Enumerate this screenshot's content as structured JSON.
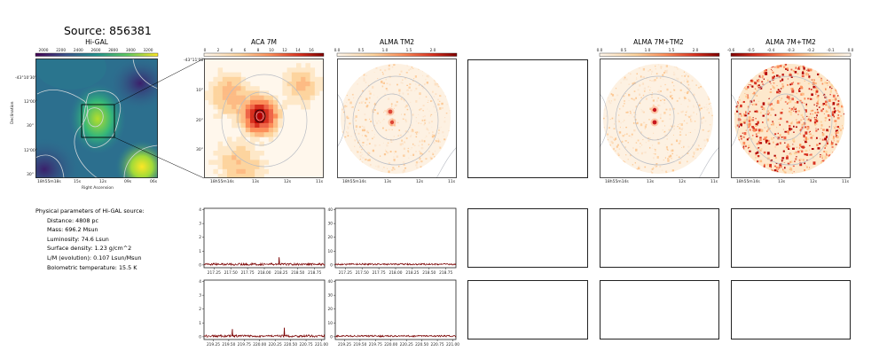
{
  "figure": {
    "title": "Source: 856381"
  },
  "panels": {
    "higal": {
      "title": "Hi-GAL",
      "colorbar_ticks": [
        "2000",
        "2200",
        "2400",
        "2600",
        "2800",
        "3000",
        "3200"
      ],
      "xlabel": "Right Ascension",
      "ylabel": "Declination",
      "x_ticks": [
        "18h55m18s",
        "15s",
        "12s",
        "09s",
        "06s"
      ],
      "y_ticks": [
        "-43°10'30\"",
        "12'00\"",
        "30\"",
        "12'00\"",
        "30\""
      ]
    },
    "aca": {
      "title": "ACA 7M",
      "colorbar_ticks": [
        "0",
        "2",
        "4",
        "6",
        "8",
        "10",
        "12",
        "14",
        "16"
      ],
      "x_ticks": [
        "18h55m14s",
        "13s",
        "12s",
        "11s"
      ],
      "y_ticks": [
        "-43°11'00\"",
        "10\"",
        "20\"",
        "30\""
      ]
    },
    "tm2": {
      "title": "ALMA TM2",
      "colorbar_ticks": [
        "0.0",
        "0.5",
        "1.0",
        "1.5",
        "2.0"
      ],
      "x_ticks": [
        "18h55m14s",
        "13s",
        "12s",
        "11s"
      ]
    },
    "combo": {
      "title": "ALMA 7M+TM2",
      "colorbar_ticks": [
        "0.0",
        "0.5",
        "1.0",
        "1.5",
        "2.0"
      ],
      "x_ticks": [
        "18h55m14s",
        "13s",
        "12s",
        "11s"
      ]
    },
    "resid": {
      "title": "ALMA 7M+TM2",
      "colorbar_ticks": [
        "-0.6",
        "-0.5",
        "-0.4",
        "-0.3",
        "-0.2",
        "-0.1",
        "0.0"
      ],
      "x_ticks": [
        "18h55m14s",
        "13s",
        "12s",
        "11s"
      ]
    }
  },
  "params": {
    "heading": "Physical parameters of Hi-GAL source:",
    "lines": [
      "Distance: 4808 pc",
      "Mass: 696.2 Msun",
      "Luminosity: 74.6 Lsun",
      "Surface density: 1.23 g/cm^2",
      "L/M (evolution): 0.107 Lsun/Msun",
      "Bolometric temperature: 15.5 K"
    ]
  },
  "colors": {
    "spectrum_line": "#7a0000",
    "heat_peak": "#c8161d",
    "viridis_low": "#2c6f8e",
    "viridis_high": "#fde725"
  },
  "chart_data": [
    {
      "type": "line",
      "name": "spectrum ACA 7M window 1",
      "x_ticks": [
        "217.25",
        "217.50",
        "217.75",
        "218.00",
        "218.25",
        "218.50",
        "218.75"
      ],
      "y_ticks": [
        "0",
        "1",
        "2",
        "3",
        "4"
      ],
      "xlim": [
        217.1,
        218.9
      ],
      "ylim": [
        -0.2,
        4.1
      ],
      "baseline": 0.05,
      "noise": 0.08,
      "peaks": [
        {
          "x": 218.22,
          "y": 0.55
        }
      ]
    },
    {
      "type": "line",
      "name": "spectrum ALMA TM2 window 1",
      "x_ticks": [
        "217.25",
        "217.50",
        "217.75",
        "218.00",
        "218.25",
        "218.50",
        "218.75"
      ],
      "y_ticks": [
        "0",
        "10",
        "20",
        "30",
        "40"
      ],
      "xlim": [
        217.1,
        218.9
      ],
      "ylim": [
        -2,
        41
      ],
      "baseline": 0.5,
      "noise": 0.6,
      "peaks": []
    },
    {
      "type": "line",
      "name": "spectrum ACA 7M window 2",
      "x_ticks": [
        "219.25",
        "219.50",
        "219.75",
        "220.00",
        "220.25",
        "220.50",
        "220.75",
        "221.00"
      ],
      "y_ticks": [
        "0",
        "1",
        "2",
        "3",
        "4"
      ],
      "xlim": [
        219.1,
        221.05
      ],
      "ylim": [
        -0.2,
        4.1
      ],
      "baseline": 0.05,
      "noise": 0.08,
      "peaks": [
        {
          "x": 219.56,
          "y": 0.55
        },
        {
          "x": 220.4,
          "y": 0.65
        }
      ]
    },
    {
      "type": "line",
      "name": "spectrum ALMA TM2 window 2",
      "x_ticks": [
        "219.25",
        "219.50",
        "219.75",
        "220.00",
        "220.25",
        "220.50",
        "220.75",
        "221.00"
      ],
      "y_ticks": [
        "0",
        "10",
        "20",
        "30",
        "40"
      ],
      "xlim": [
        219.1,
        221.05
      ],
      "ylim": [
        -2,
        41
      ],
      "baseline": 0.5,
      "noise": 0.6,
      "peaks": []
    }
  ]
}
